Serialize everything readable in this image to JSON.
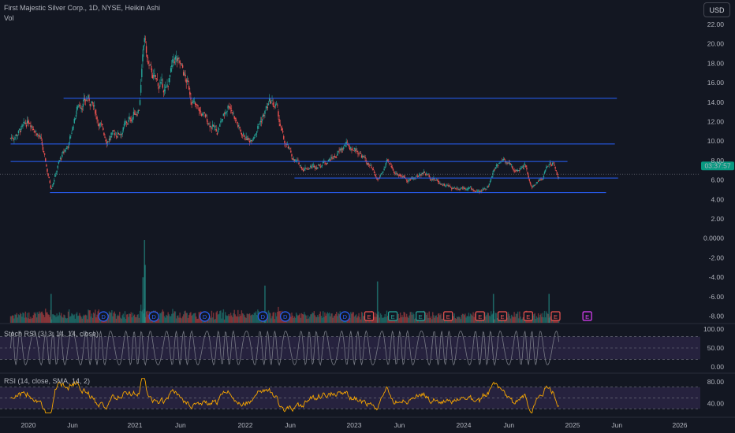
{
  "header": {
    "symbol_title": "First Majestic Silver Corp., 1D, NYSE, Heikin Ashi",
    "volume_label": "Vol"
  },
  "currency_button": "USD",
  "price_badge": "03:37:57",
  "stoch_rsi_legend": "Stoch RSI (3, 3, 14, 14, close)",
  "rsi_legend": "RSI (14, close, SMA, 14, 2)",
  "colors": {
    "background": "#131722",
    "up": "#26a69a",
    "down": "#ef5350",
    "support_lines": "#2962ff",
    "stoch_line": "#787b86",
    "rsi_line": "#f7a600",
    "band_fill": "#7e57c2",
    "dividend_marker": "#2962ff",
    "earnings_marker": "#ef5350",
    "earnings_green": "#26a69a",
    "future_earnings": "#e040fb"
  },
  "chart_data": [
    {
      "type": "candlestick",
      "style": "Heikin Ashi",
      "x_ticks": [
        "2020",
        "Jun",
        "2021",
        "Jun",
        "2022",
        "Jun",
        "2023",
        "Jun",
        "2024",
        "Jun",
        "2025",
        "Jun",
        "2026"
      ],
      "y_ticks": [
        "22.00",
        "20.00",
        "18.00",
        "16.00",
        "14.00",
        "12.00",
        "10.00",
        "8.00",
        "6.00",
        "4.00",
        "2.00",
        "0.0000",
        "-2.00",
        "-4.00",
        "-6.00",
        "-8.00"
      ],
      "ylim": [
        -9,
        23
      ],
      "last_price": 6.6,
      "price_path": [
        [
          "2019-11-01",
          10.3
        ],
        [
          "2019-12-15",
          11.3
        ],
        [
          "2020-01-05",
          12.3
        ],
        [
          "2020-02-10",
          10.4
        ],
        [
          "2020-03-12",
          6.1
        ],
        [
          "2020-03-19",
          5.2
        ],
        [
          "2020-04-15",
          7.8
        ],
        [
          "2020-05-20",
          9.8
        ],
        [
          "2020-06-20",
          13.8
        ],
        [
          "2020-07-25",
          14.3
        ],
        [
          "2020-08-10",
          13.5
        ],
        [
          "2020-09-25",
          10.2
        ],
        [
          "2020-11-15",
          11.0
        ],
        [
          "2021-01-15",
          13.5
        ],
        [
          "2021-02-02",
          20.5
        ],
        [
          "2021-02-15",
          17.5
        ],
        [
          "2021-03-15",
          16.0
        ],
        [
          "2021-04-15",
          15.2
        ],
        [
          "2021-05-15",
          18.5
        ],
        [
          "2021-06-10",
          17.0
        ],
        [
          "2021-07-20",
          13.5
        ],
        [
          "2021-09-30",
          11.0
        ],
        [
          "2021-11-10",
          14.0
        ],
        [
          "2021-12-15",
          11.0
        ],
        [
          "2022-01-15",
          10.0
        ],
        [
          "2022-02-20",
          12.0
        ],
        [
          "2022-03-25",
          14.0
        ],
        [
          "2022-04-15",
          13.5
        ],
        [
          "2022-05-10",
          10.0
        ],
        [
          "2022-06-15",
          8.0
        ],
        [
          "2022-07-15",
          7.2
        ],
        [
          "2022-09-10",
          7.6
        ],
        [
          "2022-11-01",
          8.5
        ],
        [
          "2022-12-05",
          9.6
        ],
        [
          "2023-01-15",
          9.0
        ],
        [
          "2023-02-20",
          7.5
        ],
        [
          "2023-03-20",
          5.9
        ],
        [
          "2023-04-20",
          7.7
        ],
        [
          "2023-05-20",
          6.8
        ],
        [
          "2023-07-10",
          6.0
        ],
        [
          "2023-08-20",
          6.8
        ],
        [
          "2023-10-10",
          5.8
        ],
        [
          "2023-11-20",
          5.2
        ],
        [
          "2024-01-10",
          5.3
        ],
        [
          "2024-02-25",
          4.7
        ],
        [
          "2024-03-25",
          5.5
        ],
        [
          "2024-04-20",
          7.5
        ],
        [
          "2024-05-15",
          8.3
        ],
        [
          "2024-06-20",
          6.9
        ],
        [
          "2024-07-25",
          7.5
        ],
        [
          "2024-08-15",
          5.2
        ],
        [
          "2024-09-20",
          6.0
        ],
        [
          "2024-10-15",
          7.9
        ],
        [
          "2024-10-30",
          7.6
        ],
        [
          "2024-11-12",
          6.4
        ],
        [
          "2024-11-18",
          6.6
        ]
      ],
      "horizontal_lines": [
        {
          "price": 14.4,
          "from": "2020-05-01",
          "to": "2025-06-01"
        },
        {
          "price": 9.7,
          "from": "2019-11-01",
          "to": "2025-05-25"
        },
        {
          "price": 7.9,
          "from": "2019-11-01",
          "to": "2024-12-15"
        },
        {
          "price": 6.2,
          "from": "2022-06-15",
          "to": "2025-06-05"
        },
        {
          "price": 4.7,
          "from": "2020-03-15",
          "to": "2025-04-25"
        }
      ],
      "volume_spikes": [
        [
          "2021-02-02",
          1.0
        ],
        [
          "2021-02-04",
          0.7
        ],
        [
          "2020-03-19",
          0.35
        ],
        [
          "2022-03-08",
          0.45
        ],
        [
          "2024-10-14",
          0.35
        ],
        [
          "2023-03-20",
          0.5
        ],
        [
          "2024-04-10",
          0.35
        ],
        [
          "2021-01-28",
          0.55
        ]
      ],
      "events": [
        {
          "kind": "D",
          "date": "2020-09-15"
        },
        {
          "kind": "D",
          "date": "2021-03-05"
        },
        {
          "kind": "D",
          "date": "2021-08-20"
        },
        {
          "kind": "D",
          "date": "2022-03-01"
        },
        {
          "kind": "D",
          "date": "2022-05-15"
        },
        {
          "kind": "D",
          "date": "2022-12-01"
        },
        {
          "kind": "E",
          "date": "2023-02-20"
        },
        {
          "kind": "E2",
          "date": "2023-05-10"
        },
        {
          "kind": "E2",
          "date": "2023-08-10"
        },
        {
          "kind": "E",
          "date": "2023-11-10"
        },
        {
          "kind": "E",
          "date": "2024-02-25"
        },
        {
          "kind": "E",
          "date": "2024-05-10"
        },
        {
          "kind": "E",
          "date": "2024-08-05"
        },
        {
          "kind": "E",
          "date": "2024-11-05"
        },
        {
          "kind": "EF",
          "date": "2025-02-20"
        }
      ]
    },
    {
      "type": "line",
      "name": "Stoch RSI (3, 3, 14, 14, close)",
      "y_ticks": [
        "100.00",
        "50.00",
        "0.00"
      ],
      "ylim": [
        0,
        100
      ],
      "bands": [
        20,
        80
      ]
    },
    {
      "type": "line",
      "name": "RSI (14, close, SMA, 14, 2)",
      "y_ticks": [
        "80.00",
        "40.00"
      ],
      "ylim": [
        20,
        90
      ],
      "bands": [
        30,
        70
      ]
    }
  ]
}
